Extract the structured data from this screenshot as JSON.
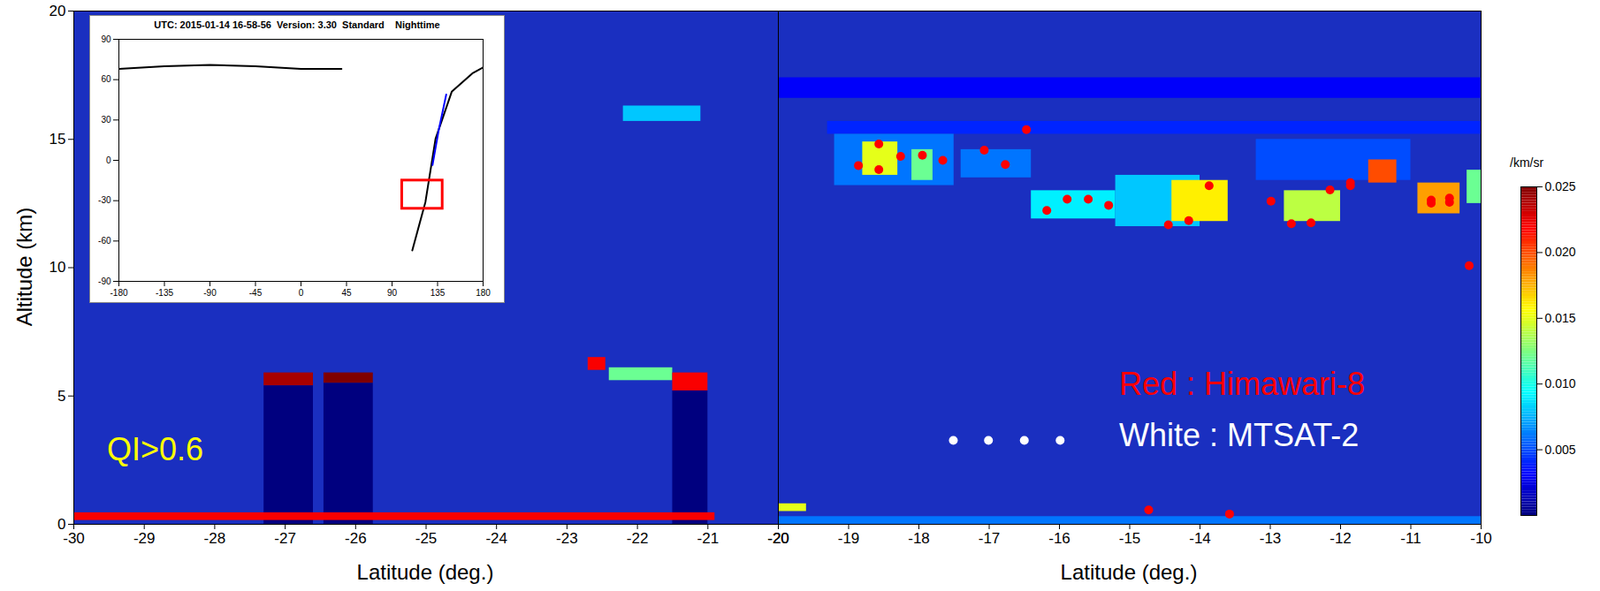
{
  "chart_data": [
    {
      "type": "heatmap_scatter",
      "xlabel": "Latitude (deg.)",
      "ylabel": "Altitude (km)",
      "xlim": [
        -30,
        -20
      ],
      "ylim": [
        0,
        20
      ],
      "xticks": [
        -30,
        -29,
        -28,
        -27,
        -26,
        -25,
        -24,
        -23,
        -22,
        -21,
        -20
      ],
      "yticks": [
        0,
        5,
        10,
        15,
        20
      ],
      "annotations": [
        {
          "text": "QI>0.6",
          "color": "#ffff00"
        }
      ],
      "cells": [
        {
          "x1": -22.2,
          "x2": -21.1,
          "y1": 15.7,
          "y2": 16.3,
          "value": 0.008
        },
        {
          "x1": -27.3,
          "x2": -26.6,
          "y1": 0,
          "y2": 5.4,
          "value": 0
        },
        {
          "x1": -26.45,
          "x2": -25.75,
          "y1": 0,
          "y2": 5.5,
          "value": 0
        },
        {
          "x1": -21.5,
          "x2": -21.0,
          "y1": 0,
          "y2": 5.2,
          "value": 0
        },
        {
          "x1": -27.3,
          "x2": -26.6,
          "y1": 5.4,
          "y2": 5.9,
          "value": 0.024
        },
        {
          "x1": -26.45,
          "x2": -25.75,
          "y1": 5.5,
          "y2": 5.9,
          "value": 0.025
        },
        {
          "x1": -22.7,
          "x2": -22.45,
          "y1": 6.0,
          "y2": 6.5,
          "value": 0.022
        },
        {
          "x1": -22.4,
          "x2": -21.5,
          "y1": 5.6,
          "y2": 6.1,
          "value": 0.012
        },
        {
          "x1": -21.5,
          "x2": -21.0,
          "y1": 5.2,
          "y2": 5.9,
          "value": 0.022
        },
        {
          "x1": -30,
          "x2": -20.9,
          "y1": 0.15,
          "y2": 0.45,
          "value": 0.022
        }
      ]
    },
    {
      "type": "heatmap_scatter",
      "xlabel": "Latitude (deg.)",
      "xlim": [
        -20,
        -10
      ],
      "ylim": [
        0,
        20
      ],
      "xticks": [
        -20,
        -19,
        -18,
        -17,
        -16,
        -15,
        -14,
        -13,
        -12,
        -11,
        -10
      ],
      "yticks": [
        0,
        5,
        10,
        15,
        20
      ],
      "tick_labels": "x",
      "legend": "bottom-right",
      "cells": [
        {
          "x1": -20,
          "x2": -10,
          "y1": 16.6,
          "y2": 17.4,
          "value": 0.003
        },
        {
          "x1": -19.3,
          "x2": -10,
          "y1": 15.2,
          "y2": 15.7,
          "value": 0.004
        },
        {
          "x1": -19.2,
          "x2": -17.5,
          "y1": 13.2,
          "y2": 15.2,
          "value": 0.006
        },
        {
          "x1": -18.8,
          "x2": -18.3,
          "y1": 13.6,
          "y2": 14.9,
          "value": 0.015
        },
        {
          "x1": -18.1,
          "x2": -17.8,
          "y1": 13.4,
          "y2": 14.6,
          "value": 0.012
        },
        {
          "x1": -17.4,
          "x2": -16.4,
          "y1": 13.5,
          "y2": 14.6,
          "value": 0.006
        },
        {
          "x1": -16.4,
          "x2": -15.2,
          "y1": 11.9,
          "y2": 13.0,
          "value": 0.009
        },
        {
          "x1": -15.2,
          "x2": -14.0,
          "y1": 11.6,
          "y2": 13.6,
          "value": 0.008
        },
        {
          "x1": -14.4,
          "x2": -13.6,
          "y1": 11.8,
          "y2": 13.4,
          "value": 0.016
        },
        {
          "x1": -13.2,
          "x2": -11.0,
          "y1": 13.4,
          "y2": 15.0,
          "value": 0.005
        },
        {
          "x1": -12.8,
          "x2": -12.0,
          "y1": 11.8,
          "y2": 13.0,
          "value": 0.014
        },
        {
          "x1": -11.6,
          "x2": -11.2,
          "y1": 13.3,
          "y2": 14.2,
          "value": 0.02
        },
        {
          "x1": -10.9,
          "x2": -10.3,
          "y1": 12.1,
          "y2": 13.3,
          "value": 0.018
        },
        {
          "x1": -10.2,
          "x2": -10.0,
          "y1": 12.5,
          "y2": 13.8,
          "value": 0.012
        },
        {
          "x1": -20,
          "x2": -19.6,
          "y1": 0.5,
          "y2": 0.8,
          "value": 0.015
        },
        {
          "x1": -20,
          "x2": -10,
          "y1": 0.0,
          "y2": 0.3,
          "value": 0.006
        }
      ],
      "series": [
        {
          "name": "Red : Himawari-8",
          "color": "#ff0000",
          "x": [
            -18.86,
            -18.57,
            -18.57,
            -18.26,
            -17.95,
            -17.66,
            -17.07,
            -16.77,
            -16.47,
            -16.18,
            -15.89,
            -15.59,
            -15.3,
            -14.45,
            -14.16,
            -13.87,
            -12.99,
            -12.7,
            -12.42,
            -12.15,
            -11.86,
            -11.86,
            -10.71,
            -10.71,
            -10.45,
            -10.45,
            -10.17,
            -14.73,
            -13.58
          ],
          "y": [
            13.98,
            14.82,
            13.82,
            14.34,
            14.38,
            14.18,
            14.58,
            14.02,
            15.38,
            12.23,
            12.67,
            12.67,
            12.43,
            11.67,
            11.83,
            13.19,
            12.59,
            11.71,
            11.75,
            13.03,
            13.31,
            13.19,
            12.63,
            12.51,
            12.71,
            12.55,
            10.08,
            0.56,
            0.4
          ]
        },
        {
          "name": "White : MTSAT-2",
          "color": "#ffffff",
          "x": [
            -17.51,
            -17.01,
            -16.5,
            -15.99
          ],
          "y": [
            3.27,
            3.27,
            3.27,
            3.27
          ]
        }
      ],
      "colorbar": {
        "label": "/km/sr",
        "range": [
          0,
          0.025
        ],
        "ticks": [
          0.005,
          {
            "value": 0.01,
            "label": "0.010"
          },
          0.015,
          {
            "value": 0.02,
            "label": "0.020"
          },
          0.025
        ]
      }
    },
    {
      "type": "line",
      "title": "UTC: 2015-01-14 16-58-56  Version: 3.30  Standard    Nighttime",
      "xlim": [
        -180,
        180
      ],
      "ylim": [
        -90,
        90
      ],
      "xticks": [
        -180,
        -135,
        -90,
        -45,
        0,
        45,
        90,
        135,
        180
      ],
      "yticks": [
        -90,
        -60,
        -30,
        0,
        30,
        60,
        90
      ],
      "series": [
        {
          "color": "#000000",
          "x": [
            110,
            123,
            133,
            149,
            170,
            180
          ],
          "y": [
            -67,
            -31,
            16,
            51,
            65,
            69
          ]
        },
        {
          "color": "#000000",
          "x": [
            -180,
            -135,
            -90,
            -45,
            0,
            40
          ],
          "y": [
            68,
            70,
            71,
            70,
            68,
            68
          ]
        },
        {
          "color": "#0000ff",
          "x": [
            130,
            136,
            143.6
          ],
          "y": [
            -3.5,
            22,
            49
          ]
        }
      ],
      "rects": [
        {
          "x1": 100,
          "x2": 140,
          "y1": -36,
          "y2": -15,
          "color": "#ff0000"
        }
      ]
    }
  ]
}
